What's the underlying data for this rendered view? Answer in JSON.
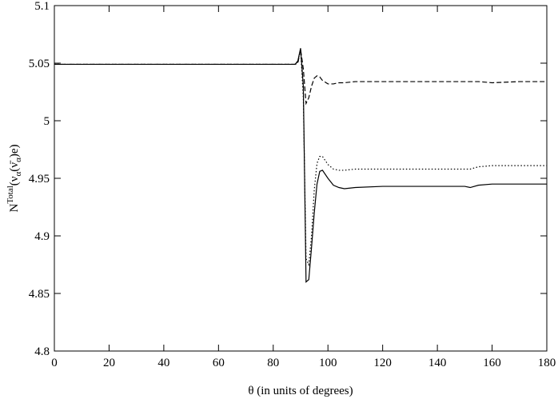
{
  "chart_data": {
    "type": "line",
    "x_label": "θ (in units of degrees)",
    "y_label": [
      "N",
      "Total",
      "(ν",
      "α",
      "(ν̄",
      "α",
      ")e)"
    ],
    "x": [
      0,
      10,
      20,
      30,
      40,
      50,
      60,
      70,
      80,
      85,
      88,
      89,
      90,
      91,
      92,
      93,
      94,
      95,
      96,
      97,
      98,
      100,
      102,
      104,
      106,
      110,
      120,
      130,
      140,
      150,
      152,
      155,
      160,
      170,
      180
    ],
    "series": [
      {
        "color": "#000000",
        "dash": "dashed",
        "values": [
          5.049,
          5.049,
          5.049,
          5.049,
          5.049,
          5.049,
          5.049,
          5.049,
          5.049,
          5.049,
          5.049,
          5.05,
          5.062,
          5.045,
          5.015,
          5.02,
          5.03,
          5.037,
          5.039,
          5.038,
          5.035,
          5.032,
          5.032,
          5.033,
          5.033,
          5.034,
          5.034,
          5.034,
          5.034,
          5.034,
          5.034,
          5.034,
          5.033,
          5.034,
          5.034
        ]
      },
      {
        "color": "#000000",
        "dash": "dotted",
        "values": [
          5.049,
          5.049,
          5.049,
          5.049,
          5.049,
          5.049,
          5.049,
          5.049,
          5.049,
          5.049,
          5.049,
          5.051,
          5.062,
          5.02,
          4.88,
          4.875,
          4.9,
          4.94,
          4.963,
          4.969,
          4.969,
          4.962,
          4.958,
          4.957,
          4.957,
          4.958,
          4.958,
          4.958,
          4.958,
          4.958,
          4.958,
          4.96,
          4.961,
          4.961,
          4.961
        ]
      },
      {
        "color": "#000000",
        "dash": "solid",
        "values": [
          5.049,
          5.049,
          5.049,
          5.049,
          5.049,
          5.049,
          5.049,
          5.049,
          5.049,
          5.049,
          5.049,
          5.052,
          5.063,
          5.03,
          4.86,
          4.862,
          4.89,
          4.92,
          4.945,
          4.956,
          4.957,
          4.95,
          4.944,
          4.942,
          4.941,
          4.942,
          4.943,
          4.943,
          4.943,
          4.943,
          4.942,
          4.944,
          4.945,
          4.945,
          4.945
        ]
      }
    ],
    "xlim": [
      0,
      180
    ],
    "xticks": [
      0,
      20,
      40,
      60,
      80,
      100,
      120,
      140,
      160,
      180
    ],
    "ylim": [
      4.8,
      5.1
    ],
    "yticks": [
      4.8,
      4.85,
      4.9,
      4.95,
      5,
      5.05,
      5.1
    ]
  }
}
